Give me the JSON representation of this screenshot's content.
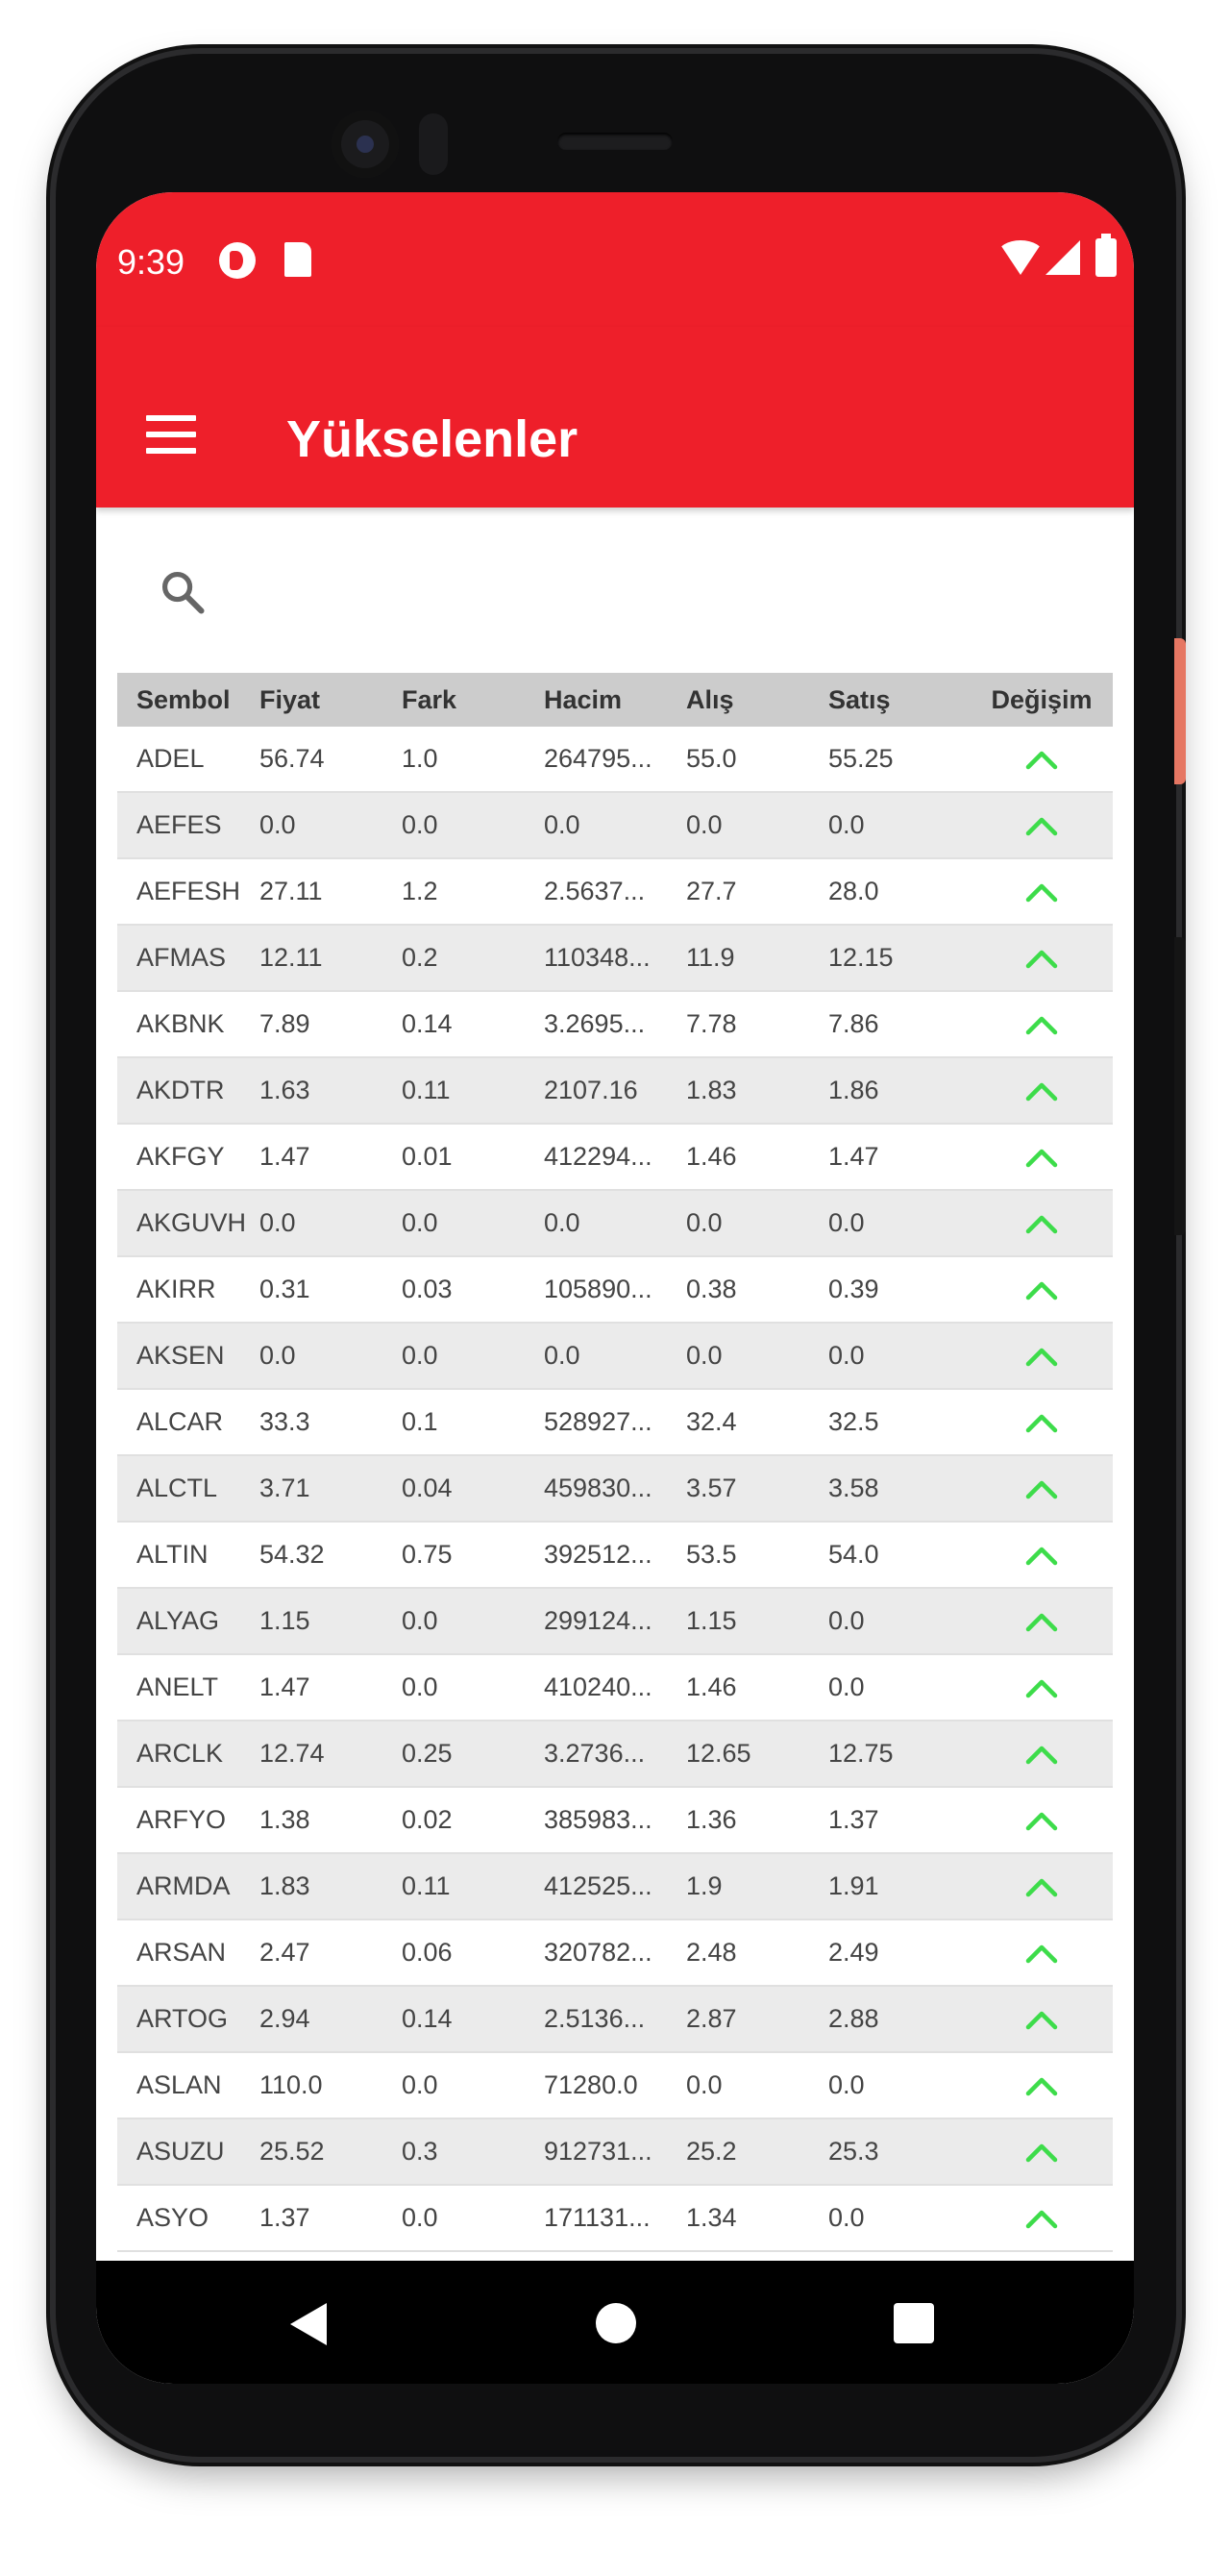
{
  "status": {
    "time": "9:39"
  },
  "appbar": {
    "title": "Yükselenler"
  },
  "search": {
    "placeholder": ""
  },
  "colors": {
    "primary": "#ee1f2a",
    "up": "#3ddc4a"
  },
  "table": {
    "headers": [
      "Sembol",
      "Fiyat",
      "Fark",
      "Hacim",
      "Alış",
      "Satış",
      "Değişim"
    ],
    "rows": [
      [
        "ADEL",
        "56.74",
        "1.0",
        "264795...",
        "55.0",
        "55.25"
      ],
      [
        "AEFES",
        "0.0",
        "0.0",
        "0.0",
        "0.0",
        "0.0"
      ],
      [
        "AEFESH",
        "27.11",
        "1.2",
        "2.5637...",
        "27.7",
        "28.0"
      ],
      [
        "AFMAS",
        "12.11",
        "0.2",
        "110348...",
        "11.9",
        "12.15"
      ],
      [
        "AKBNK",
        "7.89",
        "0.14",
        "3.2695...",
        "7.78",
        "7.86"
      ],
      [
        "AKDTR",
        "1.63",
        "0.11",
        "2107.16",
        "1.83",
        "1.86"
      ],
      [
        "AKFGY",
        "1.47",
        "0.01",
        "412294...",
        "1.46",
        "1.47"
      ],
      [
        "AKGUVH",
        "0.0",
        "0.0",
        "0.0",
        "0.0",
        "0.0"
      ],
      [
        "AKIRR",
        "0.31",
        "0.03",
        "105890...",
        "0.38",
        "0.39"
      ],
      [
        "AKSEN",
        "0.0",
        "0.0",
        "0.0",
        "0.0",
        "0.0"
      ],
      [
        "ALCAR",
        "33.3",
        "0.1",
        "528927...",
        "32.4",
        "32.5"
      ],
      [
        "ALCTL",
        "3.71",
        "0.04",
        "459830...",
        "3.57",
        "3.58"
      ],
      [
        "ALTIN",
        "54.32",
        "0.75",
        "392512...",
        "53.5",
        "54.0"
      ],
      [
        "ALYAG",
        "1.15",
        "0.0",
        "299124...",
        "1.15",
        "0.0"
      ],
      [
        "ANELT",
        "1.47",
        "0.0",
        "410240...",
        "1.46",
        "0.0"
      ],
      [
        "ARCLK",
        "12.74",
        "0.25",
        "3.2736...",
        "12.65",
        "12.75"
      ],
      [
        "ARFYO",
        "1.38",
        "0.02",
        "385983...",
        "1.36",
        "1.37"
      ],
      [
        "ARMDA",
        "1.83",
        "0.11",
        "412525...",
        "1.9",
        "1.91"
      ],
      [
        "ARSAN",
        "2.47",
        "0.06",
        "320782...",
        "2.48",
        "2.49"
      ],
      [
        "ARTOG",
        "2.94",
        "0.14",
        "2.5136...",
        "2.87",
        "2.88"
      ],
      [
        "ASLAN",
        "110.0",
        "0.0",
        "71280.0",
        "0.0",
        "0.0"
      ],
      [
        "ASUZU",
        "25.52",
        "0.3",
        "912731...",
        "25.2",
        "25.3"
      ],
      [
        "ASYO",
        "1.37",
        "0.0",
        "171131...",
        "1.34",
        "0.0"
      ]
    ]
  }
}
